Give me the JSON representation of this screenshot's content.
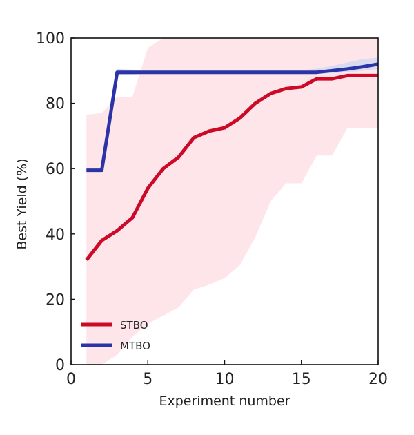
{
  "chart_data": {
    "type": "line",
    "title": "",
    "xlabel": "Experiment number",
    "ylabel": "Best Yield (%)",
    "xlim": [
      0,
      20
    ],
    "ylim": [
      0,
      100
    ],
    "xticks": [
      0,
      5,
      10,
      15,
      20
    ],
    "yticks": [
      0,
      20,
      40,
      60,
      80,
      100
    ],
    "grid": false,
    "legend_position": "bottom-left",
    "series": [
      {
        "name": "STBO",
        "color": "#cc0a28",
        "band_color": "#fde0e6",
        "x": [
          1,
          2,
          3,
          4,
          5,
          6,
          7,
          8,
          9,
          10,
          11,
          12,
          13,
          14,
          15,
          16,
          17,
          18,
          19,
          20
        ],
        "y": [
          32,
          38,
          41,
          45,
          54,
          60,
          63.5,
          69.5,
          71.5,
          72.5,
          75.5,
          80,
          83,
          84.5,
          85,
          87.5,
          87.5,
          88.5,
          88.5,
          88.5
        ],
        "lower": [
          0,
          0,
          3,
          8.5,
          12.5,
          15,
          17.5,
          23,
          24.5,
          26.5,
          30.5,
          39,
          50,
          55.5,
          55.5,
          64,
          64,
          72.5,
          72.5,
          72.5
        ],
        "upper": [
          76.5,
          77,
          82,
          82,
          97,
          100,
          100,
          100,
          100,
          100,
          100,
          100,
          100,
          100,
          100,
          100,
          100,
          100,
          100,
          100
        ]
      },
      {
        "name": "MTBO",
        "color": "#2a34a6",
        "band_color": "#d7d9ef",
        "x": [
          1,
          2,
          3,
          4,
          5,
          6,
          7,
          8,
          9,
          10,
          11,
          12,
          13,
          14,
          15,
          16,
          17,
          18,
          19,
          20
        ],
        "y": [
          59.5,
          59.5,
          89.5,
          89.5,
          89.5,
          89.5,
          89.5,
          89.5,
          89.5,
          89.5,
          89.5,
          89.5,
          89.5,
          89.5,
          89.5,
          89.5,
          90,
          90.5,
          91.2,
          92
        ],
        "lower": [
          59.5,
          59.5,
          88.5,
          88.8,
          89,
          89,
          89,
          89,
          89,
          89,
          89,
          89,
          89,
          89,
          89,
          89,
          89.2,
          89.5,
          90,
          90.5
        ],
        "upper": [
          59.5,
          59.5,
          90.5,
          90.3,
          90.2,
          90.2,
          90.2,
          90.2,
          90.2,
          90.2,
          90.2,
          90.2,
          90.2,
          90.2,
          90.2,
          90.6,
          91.5,
          92.5,
          93.5,
          94
        ]
      }
    ]
  }
}
